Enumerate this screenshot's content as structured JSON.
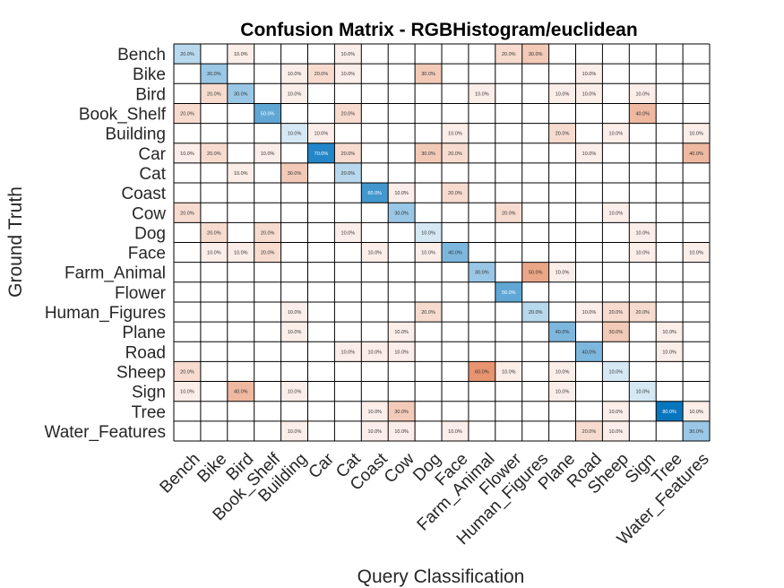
{
  "chart_data": {
    "type": "heatmap",
    "title": "Confusion Matrix - RGBHistogram/euclidean",
    "xlabel": "Query Classification",
    "ylabel": "Ground Truth",
    "categories": [
      "Bench",
      "Bike",
      "Bird",
      "Book_Shelf",
      "Building",
      "Car",
      "Cat",
      "Coast",
      "Cow",
      "Dog",
      "Face",
      "Farm_Animal",
      "Flower",
      "Human_Figures",
      "Plane",
      "Road",
      "Sheep",
      "Sign",
      "Tree",
      "Water_Features"
    ],
    "value_format": "percent",
    "color_scale": {
      "diagonal": "#0072bd",
      "off_diagonal": "#d95319"
    },
    "cells": [
      [
        0,
        0,
        20
      ],
      [
        0,
        2,
        10
      ],
      [
        0,
        6,
        10
      ],
      [
        0,
        12,
        20
      ],
      [
        0,
        13,
        30
      ],
      [
        1,
        1,
        30
      ],
      [
        1,
        4,
        10
      ],
      [
        1,
        5,
        20
      ],
      [
        1,
        6,
        10
      ],
      [
        1,
        9,
        30
      ],
      [
        1,
        15,
        10
      ],
      [
        2,
        1,
        20
      ],
      [
        2,
        2,
        30
      ],
      [
        2,
        4,
        10
      ],
      [
        2,
        11,
        10
      ],
      [
        2,
        14,
        10
      ],
      [
        2,
        15,
        10
      ],
      [
        2,
        17,
        10
      ],
      [
        3,
        0,
        20
      ],
      [
        3,
        3,
        50
      ],
      [
        3,
        6,
        20
      ],
      [
        3,
        17,
        40
      ],
      [
        4,
        4,
        10
      ],
      [
        4,
        5,
        10
      ],
      [
        4,
        10,
        10
      ],
      [
        4,
        14,
        20
      ],
      [
        4,
        16,
        10
      ],
      [
        4,
        19,
        10
      ],
      [
        5,
        0,
        10
      ],
      [
        5,
        1,
        20
      ],
      [
        5,
        3,
        10
      ],
      [
        5,
        5,
        70
      ],
      [
        5,
        6,
        20
      ],
      [
        5,
        9,
        30
      ],
      [
        5,
        10,
        20
      ],
      [
        5,
        15,
        10
      ],
      [
        5,
        19,
        40
      ],
      [
        6,
        2,
        10
      ],
      [
        6,
        4,
        30
      ],
      [
        6,
        6,
        20
      ],
      [
        7,
        7,
        60
      ],
      [
        7,
        8,
        10
      ],
      [
        7,
        10,
        20
      ],
      [
        8,
        0,
        20
      ],
      [
        8,
        8,
        30
      ],
      [
        8,
        12,
        20
      ],
      [
        8,
        16,
        10
      ],
      [
        9,
        1,
        20
      ],
      [
        9,
        3,
        20
      ],
      [
        9,
        6,
        10
      ],
      [
        9,
        9,
        10
      ],
      [
        9,
        17,
        10
      ],
      [
        10,
        1,
        10
      ],
      [
        10,
        2,
        10
      ],
      [
        10,
        3,
        20
      ],
      [
        10,
        7,
        10
      ],
      [
        10,
        9,
        10
      ],
      [
        10,
        10,
        40
      ],
      [
        10,
        17,
        10
      ],
      [
        10,
        19,
        10
      ],
      [
        11,
        11,
        30
      ],
      [
        11,
        13,
        50
      ],
      [
        11,
        14,
        10
      ],
      [
        12,
        12,
        50
      ],
      [
        13,
        4,
        10
      ],
      [
        13,
        9,
        20
      ],
      [
        13,
        13,
        20
      ],
      [
        13,
        15,
        10
      ],
      [
        13,
        16,
        20
      ],
      [
        13,
        17,
        20
      ],
      [
        14,
        4,
        10
      ],
      [
        14,
        8,
        10
      ],
      [
        14,
        14,
        40
      ],
      [
        14,
        16,
        30
      ],
      [
        14,
        18,
        10
      ],
      [
        15,
        6,
        10
      ],
      [
        15,
        7,
        10
      ],
      [
        15,
        8,
        10
      ],
      [
        15,
        15,
        40
      ],
      [
        15,
        18,
        10
      ],
      [
        16,
        0,
        20
      ],
      [
        16,
        11,
        60
      ],
      [
        16,
        12,
        10
      ],
      [
        16,
        14,
        10
      ],
      [
        16,
        16,
        10
      ],
      [
        17,
        0,
        10
      ],
      [
        17,
        2,
        40
      ],
      [
        17,
        4,
        10
      ],
      [
        17,
        14,
        10
      ],
      [
        17,
        17,
        10
      ],
      [
        18,
        7,
        10
      ],
      [
        18,
        8,
        30
      ],
      [
        18,
        16,
        10
      ],
      [
        18,
        18,
        80
      ],
      [
        18,
        19,
        10
      ],
      [
        19,
        4,
        10
      ],
      [
        19,
        7,
        10
      ],
      [
        19,
        8,
        10
      ],
      [
        19,
        10,
        10
      ],
      [
        19,
        15,
        20
      ],
      [
        19,
        16,
        10
      ],
      [
        19,
        19,
        30
      ]
    ]
  }
}
